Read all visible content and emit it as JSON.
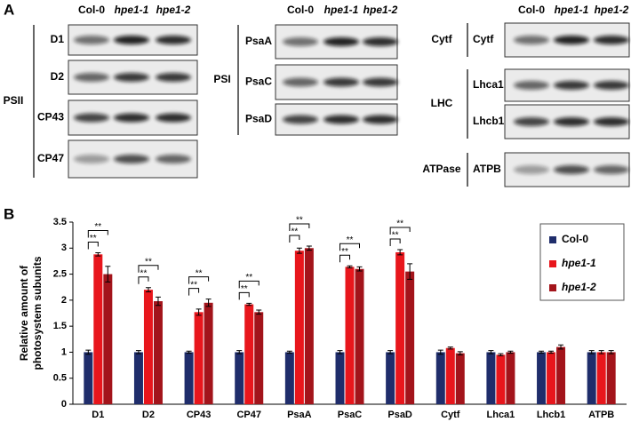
{
  "panel_a": {
    "label": "A",
    "blocks": [
      {
        "headers": [
          "Col-0",
          "hpe1-1",
          "hpe1-2"
        ],
        "groups": [
          {
            "name": "PSII",
            "rows": [
              "D1",
              "D2",
              "CP43",
              "CP47"
            ]
          }
        ]
      },
      {
        "headers": [
          "Col-0",
          "hpe1-1",
          "hpe1-2"
        ],
        "groups": [
          {
            "name": "PSI",
            "rows": [
              "PsaA",
              "PsaC",
              "PsaD"
            ]
          }
        ]
      },
      {
        "headers": [
          "Col-0",
          "hpe1-1",
          "hpe1-2"
        ],
        "groups": [
          {
            "name": "Cytf",
            "rows": [
              "Cytf"
            ]
          },
          {
            "name": "LHC",
            "rows": [
              "Lhca1",
              "Lhcb1"
            ]
          },
          {
            "name": "ATPase",
            "rows": [
              "ATPB"
            ]
          }
        ]
      }
    ]
  },
  "chart_data": {
    "type": "bar",
    "panel_label": "B",
    "ylabel": [
      "Relative amount of",
      "photosystem subunits"
    ],
    "categories": [
      "D1",
      "D2",
      "CP43",
      "CP47",
      "PsaA",
      "PsaC",
      "PsaD",
      "Cytf",
      "Lhca1",
      "Lhcb1",
      "ATPB"
    ],
    "series": [
      {
        "name": "Col-0",
        "color": "#1f2d6b",
        "values": [
          1,
          1,
          1,
          1,
          1,
          1,
          1,
          1,
          1,
          1,
          1
        ],
        "errors": [
          0.04,
          0.03,
          0.02,
          0.03,
          0.02,
          0.03,
          0.03,
          0.04,
          0.03,
          0.02,
          0.03
        ]
      },
      {
        "name": "hpe1-1",
        "color": "#e8161c",
        "values": [
          2.88,
          2.2,
          1.77,
          1.92,
          2.95,
          2.64,
          2.92,
          1.08,
          0.95,
          1.0,
          1.0
        ],
        "errors": [
          0.03,
          0.04,
          0.06,
          0.02,
          0.05,
          0.02,
          0.05,
          0.02,
          0.02,
          0.02,
          0.03
        ]
      },
      {
        "name": "hpe1-2",
        "color": "#a3141b",
        "values": [
          2.5,
          1.98,
          1.95,
          1.77,
          3.0,
          2.6,
          2.55,
          0.98,
          1.0,
          1.1,
          1.0
        ],
        "errors": [
          0.15,
          0.08,
          0.07,
          0.04,
          0.04,
          0.04,
          0.15,
          0.03,
          0.02,
          0.04,
          0.03
        ]
      }
    ],
    "significance": [
      [
        "**",
        "**"
      ],
      [
        "**",
        "**"
      ],
      [
        "**",
        "**"
      ],
      [
        "**",
        "**"
      ],
      [
        "**",
        "**"
      ],
      [
        "**",
        "**"
      ],
      [
        "**",
        "**"
      ],
      null,
      null,
      null,
      null
    ],
    "ylim": [
      0,
      3.5
    ],
    "yticks": [
      0,
      0.5,
      1,
      1.5,
      2,
      2.5,
      3,
      3.5
    ],
    "grid": false,
    "legend": "right"
  }
}
